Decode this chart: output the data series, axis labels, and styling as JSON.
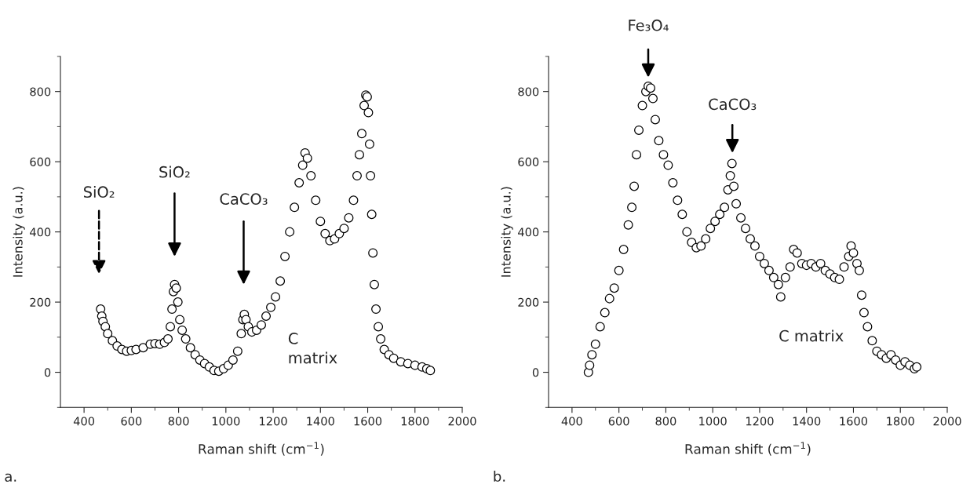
{
  "chart_data": [
    {
      "type": "scatter",
      "xlabel": "Raman shift (cm$^{−1}$)",
      "ylabel": "Intensity (a.u.)",
      "marker": "circle",
      "xlim": [
        300,
        2000
      ],
      "ylim": [
        -100,
        900
      ],
      "xticks": [
        400,
        {
          "value": 500,
          "label": null
        },
        600,
        {
          "value": 700,
          "label": null
        },
        800,
        {
          "value": 900,
          "label": null
        },
        1000,
        {
          "value": 1100,
          "label": null
        },
        1200,
        {
          "value": 1300,
          "label": null
        },
        1400,
        {
          "value": 1500,
          "label": null
        },
        1600,
        {
          "value": 1700,
          "label": null
        },
        1800,
        {
          "value": 1900,
          "label": null
        },
        2000
      ],
      "yticks": [
        {
          "value": -100,
          "label": null
        },
        0,
        {
          "value": 100,
          "label": null
        },
        200,
        {
          "value": 300,
          "label": null
        },
        400,
        {
          "value": 500,
          "label": null
        },
        600,
        {
          "value": 700,
          "label": null
        },
        800,
        {
          "value": 900,
          "label": null
        }
      ],
      "series": [
        {
          "color": "#000000",
          "x": [
            470,
            475,
            480,
            490,
            500,
            520,
            540,
            560,
            580,
            600,
            620,
            650,
            680,
            700,
            720,
            740,
            755,
            765,
            772,
            778,
            783,
            790,
            797,
            805,
            815,
            830,
            850,
            870,
            890,
            910,
            930,
            950,
            970,
            990,
            1010,
            1030,
            1050,
            1065,
            1072,
            1078,
            1085,
            1095,
            1110,
            1130,
            1150,
            1170,
            1190,
            1210,
            1230,
            1250,
            1270,
            1290,
            1310,
            1325,
            1335,
            1345,
            1360,
            1380,
            1400,
            1420,
            1440,
            1460,
            1480,
            1500,
            1520,
            1540,
            1555,
            1565,
            1575,
            1585,
            1592,
            1598,
            1603,
            1608,
            1612,
            1617,
            1622,
            1628,
            1635,
            1645,
            1655,
            1670,
            1690,
            1710,
            1740,
            1770,
            1800,
            1830,
            1850,
            1865
          ],
          "values": [
            180,
            160,
            145,
            130,
            110,
            90,
            75,
            65,
            60,
            62,
            65,
            70,
            80,
            82,
            80,
            85,
            95,
            130,
            180,
            230,
            250,
            240,
            200,
            150,
            120,
            95,
            70,
            50,
            35,
            25,
            15,
            5,
            3,
            10,
            20,
            35,
            60,
            110,
            150,
            165,
            150,
            130,
            115,
            120,
            135,
            160,
            185,
            215,
            260,
            330,
            400,
            470,
            540,
            590,
            625,
            610,
            560,
            490,
            430,
            395,
            375,
            380,
            395,
            410,
            440,
            490,
            560,
            620,
            680,
            760,
            790,
            785,
            740,
            650,
            560,
            450,
            340,
            250,
            180,
            130,
            95,
            65,
            50,
            40,
            30,
            25,
            20,
            15,
            10,
            5
          ]
        }
      ],
      "annotations": [
        "SiO₂",
        "SiO₂",
        "CaCO₃",
        "C\nmatrix",
        "a."
      ]
    },
    {
      "type": "scatter",
      "xlabel": "Raman shift (cm$^{−1}$)",
      "ylabel": "Intensity (a.u.)",
      "marker": "circle",
      "xlim": [
        300,
        2000
      ],
      "ylim": [
        -100,
        900
      ],
      "xticks": [
        400,
        {
          "value": 500,
          "label": null
        },
        600,
        {
          "value": 700,
          "label": null
        },
        800,
        {
          "value": 900,
          "label": null
        },
        1000,
        {
          "value": 1100,
          "label": null
        },
        1200,
        {
          "value": 1300,
          "label": null
        },
        1400,
        {
          "value": 1500,
          "label": null
        },
        1600,
        {
          "value": 1700,
          "label": null
        },
        1800,
        {
          "value": 1900,
          "label": null
        },
        2000
      ],
      "yticks": [
        {
          "value": -100,
          "label": null
        },
        0,
        {
          "value": 100,
          "label": null
        },
        200,
        {
          "value": 300,
          "label": null
        },
        400,
        {
          "value": 500,
          "label": null
        },
        600,
        {
          "value": 700,
          "label": null
        },
        800,
        {
          "value": 900,
          "label": null
        }
      ],
      "series": [
        {
          "color": "#000000",
          "x": [
            470,
            475,
            485,
            500,
            520,
            540,
            560,
            580,
            600,
            620,
            640,
            655,
            665,
            675,
            685,
            700,
            715,
            725,
            735,
            745,
            755,
            770,
            790,
            810,
            830,
            850,
            870,
            890,
            910,
            930,
            950,
            970,
            990,
            1010,
            1030,
            1050,
            1065,
            1075,
            1082,
            1090,
            1100,
            1120,
            1140,
            1160,
            1180,
            1200,
            1220,
            1240,
            1260,
            1280,
            1290,
            1310,
            1330,
            1345,
            1360,
            1380,
            1400,
            1420,
            1440,
            1460,
            1480,
            1500,
            1520,
            1540,
            1560,
            1580,
            1590,
            1600,
            1615,
            1625,
            1635,
            1645,
            1660,
            1680,
            1700,
            1720,
            1740,
            1760,
            1780,
            1800,
            1820,
            1840,
            1860,
            1870
          ],
          "values": [
            0,
            20,
            50,
            80,
            130,
            170,
            210,
            240,
            290,
            350,
            420,
            470,
            530,
            620,
            690,
            760,
            800,
            815,
            810,
            780,
            720,
            660,
            620,
            590,
            540,
            490,
            450,
            400,
            370,
            355,
            360,
            380,
            410,
            430,
            450,
            470,
            520,
            560,
            595,
            530,
            480,
            440,
            410,
            380,
            360,
            330,
            310,
            290,
            270,
            250,
            215,
            270,
            300,
            350,
            340,
            310,
            305,
            310,
            300,
            310,
            290,
            280,
            270,
            265,
            300,
            330,
            360,
            340,
            310,
            290,
            220,
            170,
            130,
            90,
            60,
            50,
            40,
            50,
            35,
            20,
            30,
            20,
            10,
            15
          ]
        }
      ],
      "annotations": [
        "Fe₃O₄",
        "CaCO₃",
        "C matrix",
        "b."
      ]
    }
  ]
}
